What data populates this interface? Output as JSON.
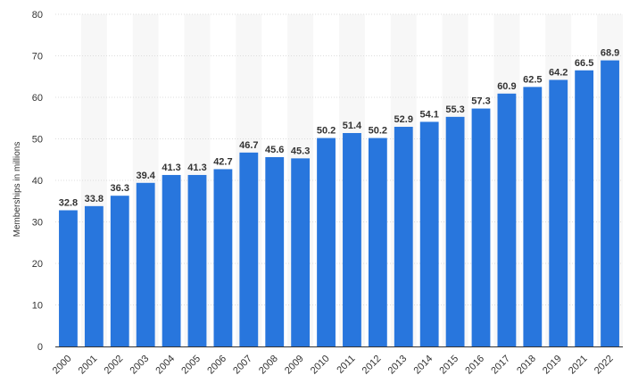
{
  "chart_data": {
    "type": "bar",
    "title": "",
    "xlabel": "",
    "ylabel": "Memberships in millions",
    "ylim": [
      0,
      80
    ],
    "yticks": [
      0,
      10,
      20,
      30,
      40,
      50,
      60,
      70,
      80
    ],
    "grid": true,
    "bar_color": "#2876dd",
    "band_color": "#f7f7f7",
    "grid_color": "#dcdcdc",
    "categories": [
      "2000",
      "2001",
      "2002",
      "2003",
      "2004",
      "2005",
      "2006",
      "2007",
      "2008",
      "2009",
      "2010",
      "2011",
      "2012",
      "2013",
      "2014",
      "2015",
      "2016",
      "2017",
      "2018",
      "2019",
      "2021",
      "2022"
    ],
    "values": [
      32.8,
      33.8,
      36.3,
      39.4,
      41.3,
      41.3,
      42.7,
      46.7,
      45.6,
      45.3,
      50.2,
      51.4,
      50.2,
      52.9,
      54.1,
      55.3,
      57.3,
      60.9,
      62.5,
      64.2,
      66.5,
      68.9
    ],
    "value_labels": [
      "32.8",
      "33.8",
      "36.3",
      "39.4",
      "41.3",
      "41.3",
      "42.7",
      "46.7",
      "45.6",
      "45.3",
      "50.2",
      "51.4",
      "50.2",
      "52.9",
      "54.1",
      "55.3",
      "57.3",
      "60.9",
      "62.5",
      "64.2",
      "66.5",
      "68.9"
    ]
  }
}
